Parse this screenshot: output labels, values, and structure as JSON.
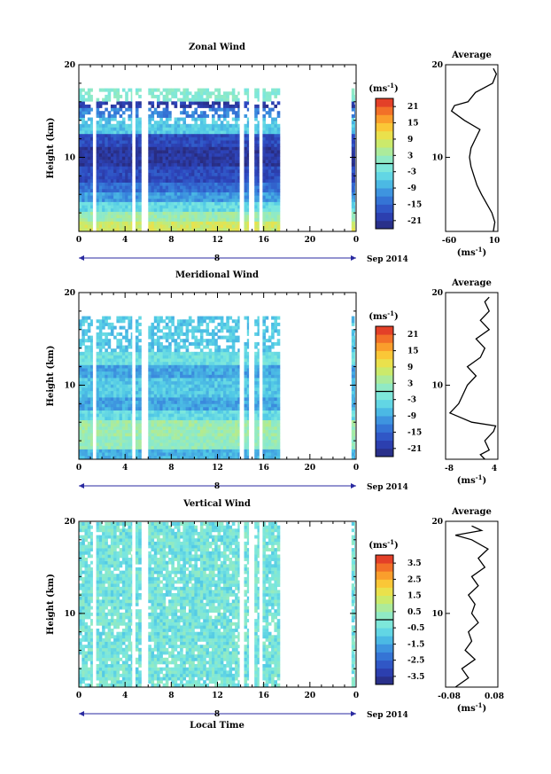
{
  "chart_data": [
    {
      "type": "heatmap",
      "title": "Zonal Wind",
      "ylabel": "Height (km)",
      "ylim": [
        2,
        20
      ],
      "y_ticks": [
        "20",
        "10"
      ],
      "xlim": [
        0,
        24
      ],
      "x_ticks": [
        "0",
        "4",
        "8",
        "12",
        "16",
        "20",
        "0"
      ],
      "date_label": "8",
      "date_suffix": "Sep 2014",
      "colorbar": {
        "unit": "(ms",
        "unit_sup": "-1",
        "unit_close": ")",
        "range": [
          -24,
          24
        ],
        "tick_labels": [
          "21",
          "15",
          "9",
          "3",
          "-3",
          "-9",
          "-15",
          "-21"
        ],
        "tick_values": [
          21,
          15,
          9,
          3,
          -3,
          -9,
          -15,
          -21
        ]
      },
      "data_columns_hours": [
        [
          0.0,
          1.2
        ],
        [
          1.5,
          4.6
        ],
        [
          4.9,
          5.4
        ],
        [
          6.0,
          13.9
        ],
        [
          14.3,
          14.7
        ],
        [
          15.2,
          15.6
        ],
        [
          15.9,
          17.4
        ],
        [
          23.6,
          23.9
        ]
      ],
      "profile_layers": [
        {
          "from": 2,
          "to": 3,
          "value": 8
        },
        {
          "from": 3,
          "to": 4,
          "value": 3
        },
        {
          "from": 4,
          "to": 5,
          "value": -4
        },
        {
          "from": 5,
          "to": 6,
          "value": -10
        },
        {
          "from": 6,
          "to": 7,
          "value": -14
        },
        {
          "from": 7,
          "to": 9,
          "value": -18
        },
        {
          "from": 9,
          "to": 11,
          "value": -21
        },
        {
          "from": 11,
          "to": 12.5,
          "value": -18
        },
        {
          "from": 12.5,
          "to": 14,
          "value": -6
        },
        {
          "from": 14,
          "to": 15,
          "value": -12
        },
        {
          "from": 15,
          "to": 16,
          "value": -20
        },
        {
          "from": 16,
          "to": 17,
          "value": 0
        }
      ],
      "average": {
        "title": "Average",
        "xlim": [
          -60,
          10
        ],
        "x_ticks": [
          "-60",
          "10"
        ],
        "y_ticks": [
          "20",
          "10"
        ],
        "xlabel": "(ms",
        "xlabel_sup": "-1",
        "xlabel_close": ")",
        "profile": [
          [
            2,
            4
          ],
          [
            3,
            6
          ],
          [
            4,
            2
          ],
          [
            5,
            -5
          ],
          [
            6,
            -12
          ],
          [
            7,
            -18
          ],
          [
            8,
            -22
          ],
          [
            9,
            -26
          ],
          [
            10,
            -28
          ],
          [
            11,
            -26
          ],
          [
            12,
            -20
          ],
          [
            13,
            -14
          ],
          [
            14,
            -35
          ],
          [
            15,
            -52
          ],
          [
            15.6,
            -48
          ],
          [
            16,
            -30
          ],
          [
            17,
            -20
          ],
          [
            18,
            3
          ],
          [
            19,
            8
          ],
          [
            19.6,
            4
          ]
        ]
      }
    },
    {
      "type": "heatmap",
      "title": "Meridional Wind",
      "ylabel": "Height (km)",
      "ylim": [
        2,
        20
      ],
      "y_ticks": [
        "20",
        "10"
      ],
      "xlim": [
        0,
        24
      ],
      "x_ticks": [
        "0",
        "4",
        "8",
        "12",
        "16",
        "20",
        "0"
      ],
      "date_label": "8",
      "date_suffix": "Sep 2014",
      "colorbar": {
        "unit": "(ms",
        "unit_sup": "-1",
        "unit_close": ")",
        "range": [
          -24,
          24
        ],
        "tick_labels": [
          "21",
          "15",
          "9",
          "3",
          "-3",
          "-9",
          "-15",
          "-21"
        ],
        "tick_values": [
          21,
          15,
          9,
          3,
          -3,
          -9,
          -15,
          -21
        ]
      },
      "data_columns_hours": [
        [
          0.0,
          1.2
        ],
        [
          1.5,
          4.6
        ],
        [
          4.9,
          5.4
        ],
        [
          6.0,
          13.9
        ],
        [
          14.3,
          14.7
        ],
        [
          15.2,
          15.6
        ],
        [
          15.9,
          17.4
        ],
        [
          23.6,
          23.9
        ]
      ],
      "profile_layers": [
        {
          "from": 2,
          "to": 3,
          "value": -8
        },
        {
          "from": 3,
          "to": 4.5,
          "value": 2
        },
        {
          "from": 4.5,
          "to": 6,
          "value": 3
        },
        {
          "from": 6,
          "to": 7,
          "value": -4
        },
        {
          "from": 7,
          "to": 8.5,
          "value": -9
        },
        {
          "from": 8.5,
          "to": 10.5,
          "value": -6
        },
        {
          "from": 10.5,
          "to": 12,
          "value": -9
        },
        {
          "from": 12,
          "to": 13.5,
          "value": -3
        },
        {
          "from": 13.5,
          "to": 16,
          "value": -6
        }
      ],
      "average": {
        "title": "Average",
        "xlim": [
          -8,
          4
        ],
        "x_ticks": [
          "-8",
          "4"
        ],
        "y_ticks": [
          "20",
          "10"
        ],
        "xlabel": "(ms",
        "xlabel_sup": "-1",
        "xlabel_close": ")",
        "profile": [
          [
            2,
            1
          ],
          [
            2.5,
            0
          ],
          [
            3,
            2
          ],
          [
            4,
            1
          ],
          [
            5,
            3
          ],
          [
            5.6,
            3.5
          ],
          [
            6,
            -2
          ],
          [
            7,
            -7
          ],
          [
            8,
            -5
          ],
          [
            9,
            -4
          ],
          [
            10,
            -3
          ],
          [
            11,
            -1
          ],
          [
            12,
            -3
          ],
          [
            13,
            0
          ],
          [
            14,
            1
          ],
          [
            15,
            -1
          ],
          [
            16,
            2
          ],
          [
            17,
            0
          ],
          [
            18,
            2
          ],
          [
            19,
            1
          ],
          [
            19.5,
            2
          ]
        ]
      }
    },
    {
      "type": "heatmap",
      "title": "Vertical Wind",
      "ylabel": "Height (km)",
      "xlabel": "Local Time",
      "ylim": [
        2,
        20
      ],
      "y_ticks": [
        "20",
        "10"
      ],
      "xlim": [
        0,
        24
      ],
      "x_ticks": [
        "0",
        "4",
        "8",
        "12",
        "16",
        "20",
        "0"
      ],
      "date_label": "8",
      "date_suffix": "Sep 2014",
      "colorbar": {
        "unit": "(ms",
        "unit_sup": "-1",
        "unit_close": ")",
        "range": [
          -4,
          4
        ],
        "tick_labels": [
          "3.5",
          "2.5",
          "1.5",
          "0.5",
          "-0.5",
          "-1.5",
          "-2.5",
          "-3.5"
        ],
        "tick_values": [
          3.5,
          2.5,
          1.5,
          0.5,
          -0.5,
          -1.5,
          -2.5,
          -3.5
        ]
      },
      "data_columns_hours": [
        [
          0.0,
          1.2
        ],
        [
          1.5,
          4.6
        ],
        [
          4.9,
          5.4
        ],
        [
          6.0,
          13.9
        ],
        [
          14.3,
          14.7
        ],
        [
          15.2,
          15.6
        ],
        [
          15.9,
          17.4
        ],
        [
          23.6,
          23.9
        ]
      ],
      "profile_layers": [
        {
          "from": 2,
          "to": 20,
          "value": -0.3
        }
      ],
      "average": {
        "title": "Average",
        "xlim": [
          -0.08,
          0.08
        ],
        "x_ticks": [
          "-0.08",
          "0.08"
        ],
        "y_ticks": [
          "20",
          "10"
        ],
        "xlabel": "(ms",
        "xlabel_sup": "-1",
        "xlabel_close": ")",
        "profile": [
          [
            2,
            -0.05
          ],
          [
            3,
            -0.01
          ],
          [
            4,
            -0.03
          ],
          [
            5,
            0.01
          ],
          [
            6,
            -0.02
          ],
          [
            7,
            0.0
          ],
          [
            8,
            -0.01
          ],
          [
            9,
            0.02
          ],
          [
            10,
            0.0
          ],
          [
            11,
            0.01
          ],
          [
            12,
            -0.01
          ],
          [
            13,
            0.02
          ],
          [
            14,
            0.0
          ],
          [
            15,
            0.04
          ],
          [
            16,
            0.02
          ],
          [
            17,
            0.05
          ],
          [
            18,
            0.0
          ],
          [
            18.5,
            -0.05
          ],
          [
            19,
            0.03
          ],
          [
            19.5,
            0.0
          ]
        ]
      }
    }
  ]
}
